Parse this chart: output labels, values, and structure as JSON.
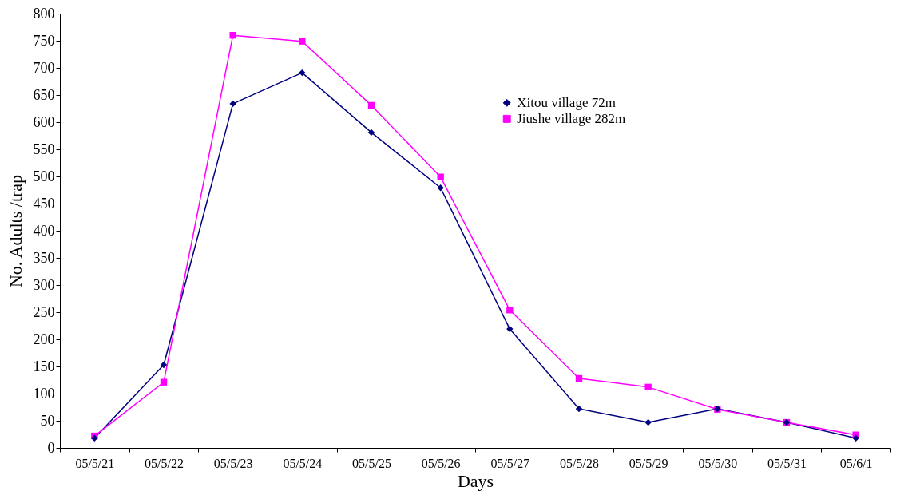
{
  "chart_data": {
    "type": "line",
    "xlabel": "Days",
    "ylabel": "No. Adults /trap",
    "categories": [
      "05/5/21",
      "05/5/22",
      "05/5/23",
      "05/5/24",
      "05/5/25",
      "05/5/26",
      "05/5/27",
      "05/5/28",
      "05/5/29",
      "05/5/30",
      "05/5/31",
      "05/6/1"
    ],
    "series": [
      {
        "name": "Xitou village 72m",
        "color": "#000080",
        "marker": "diamond",
        "values": [
          18,
          153,
          634,
          691,
          581,
          479,
          219,
          72,
          47,
          72,
          47,
          18
        ]
      },
      {
        "name": "Jiushe village 282m",
        "color": "#ff00ff",
        "marker": "square",
        "values": [
          22,
          121,
          760,
          749,
          631,
          499,
          254,
          128,
          112,
          71,
          47,
          24
        ]
      }
    ],
    "ylim": [
      0,
      800
    ],
    "yticks": [
      0,
      50,
      100,
      150,
      200,
      250,
      300,
      350,
      400,
      450,
      500,
      550,
      600,
      650,
      700,
      750,
      800
    ],
    "grid": false,
    "legend": "top right",
    "line_style": "solid"
  }
}
